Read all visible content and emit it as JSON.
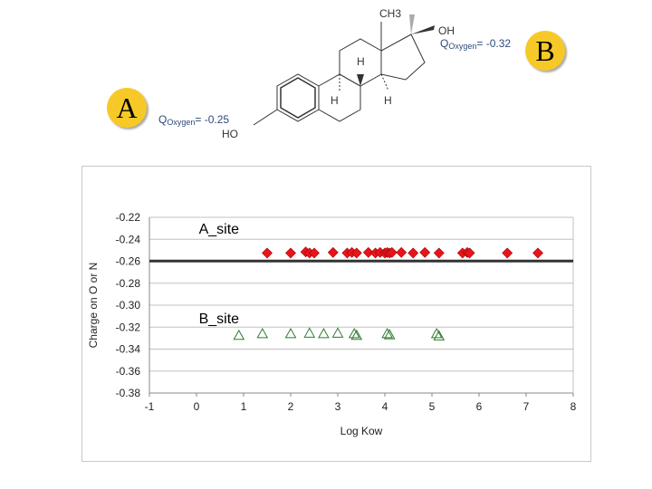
{
  "molecule": {
    "labels": {
      "ch3": "CH3",
      "oh": "OH",
      "ho": "HO",
      "h_top": "H",
      "h_left": "H",
      "h_right": "H"
    },
    "site_a": {
      "badge": "A",
      "q_prefix": "Q",
      "q_sub": "Oxygen",
      "q_value": "= -0.25"
    },
    "site_b": {
      "badge": "B",
      "q_prefix": "Q",
      "q_sub": "Oxygen",
      "q_value": "= -0.32"
    },
    "colors": {
      "badge": "#f7c928",
      "q_text": "#2c4a7a"
    }
  },
  "chart_data": {
    "type": "scatter",
    "title": "",
    "xlabel": "Log Kow",
    "ylabel": "Charge on O or N",
    "xlim": [
      -1,
      8
    ],
    "ylim": [
      -0.38,
      -0.22
    ],
    "x_ticks": [
      -1,
      0,
      1,
      2,
      3,
      4,
      5,
      6,
      7,
      8
    ],
    "y_ticks": [
      -0.22,
      -0.24,
      -0.26,
      -0.28,
      -0.3,
      -0.32,
      -0.34,
      -0.36,
      -0.38
    ],
    "y_tick_labels": [
      "-0.22",
      "-0.24",
      "-0.26",
      "-0.28",
      "-0.30",
      "-0.32",
      "-0.34",
      "-0.36",
      "-0.38"
    ],
    "grid": "horizontal",
    "reference_line": {
      "y": -0.2598,
      "color": "#333333"
    },
    "annotations": [
      {
        "text": "A_site",
        "x": 0.05,
        "y": -0.235
      },
      {
        "text": "B_site",
        "x": 0.05,
        "y": -0.3165
      }
    ],
    "series": [
      {
        "marker": "diamond",
        "color": "#e8141c",
        "x": [
          1.5,
          2.0,
          2.32,
          2.4,
          2.5,
          2.9,
          3.2,
          3.3,
          3.4,
          3.65,
          3.8,
          3.9,
          4.0,
          4.05,
          4.1,
          4.15,
          4.35,
          4.6,
          4.85,
          5.15,
          5.65,
          5.75,
          5.8,
          6.6,
          7.25
        ],
        "y": [
          -0.2525,
          -0.2525,
          -0.2515,
          -0.2525,
          -0.2525,
          -0.252,
          -0.2525,
          -0.252,
          -0.2525,
          -0.252,
          -0.2525,
          -0.252,
          -0.2525,
          -0.252,
          -0.2525,
          -0.252,
          -0.252,
          -0.2525,
          -0.252,
          -0.2525,
          -0.2525,
          -0.252,
          -0.2525,
          -0.2525,
          -0.2525
        ]
      },
      {
        "marker": "triangle",
        "color": "#2f7a2f",
        "x": [
          0.9,
          1.4,
          2.0,
          2.4,
          2.7,
          3.0,
          3.35,
          3.4,
          4.05,
          4.1,
          5.1,
          5.15
        ],
        "y": [
          -0.3275,
          -0.326,
          -0.326,
          -0.3255,
          -0.326,
          -0.3255,
          -0.326,
          -0.3275,
          -0.326,
          -0.327,
          -0.326,
          -0.328
        ]
      }
    ]
  }
}
